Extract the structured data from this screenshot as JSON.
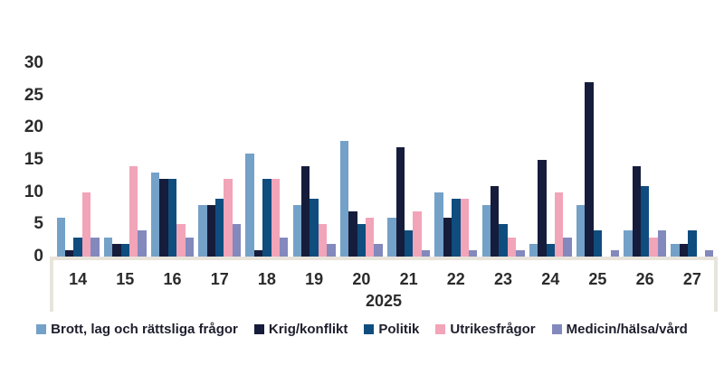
{
  "chart_data": {
    "type": "bar",
    "title": "",
    "xlabel": "2025",
    "ylabel": "",
    "ylim": [
      0,
      30
    ],
    "y_ticks": [
      0,
      5,
      10,
      15,
      20,
      25,
      30
    ],
    "grid": false,
    "legend_position": "bottom",
    "categories": [
      "14",
      "15",
      "16",
      "17",
      "18",
      "19",
      "20",
      "21",
      "22",
      "23",
      "24",
      "25",
      "26",
      "27"
    ],
    "series": [
      {
        "name": "Brott, lag och rättsliga frågor",
        "color": "#74a1c8",
        "values": [
          6,
          3,
          13,
          8,
          16,
          8,
          18,
          6,
          10,
          8,
          2,
          8,
          4,
          2
        ]
      },
      {
        "name": "Krig/konflikt",
        "color": "#161c3b",
        "values": [
          1,
          2,
          12,
          8,
          1,
          14,
          7,
          17,
          6,
          11,
          15,
          27,
          14,
          2
        ]
      },
      {
        "name": "Politik",
        "color": "#0f4d7e",
        "values": [
          3,
          2,
          12,
          9,
          12,
          9,
          5,
          4,
          9,
          5,
          2,
          4,
          11,
          4
        ]
      },
      {
        "name": "Utrikesfrågor",
        "color": "#f2a4b8",
        "values": [
          10,
          14,
          5,
          12,
          12,
          5,
          6,
          7,
          9,
          3,
          10,
          0,
          3,
          0
        ]
      },
      {
        "name": "Medicin/hälsa/vård",
        "color": "#8389bd",
        "values": [
          3,
          4,
          3,
          5,
          3,
          2,
          2,
          1,
          1,
          1,
          3,
          1,
          4,
          1
        ]
      }
    ],
    "colors": {
      "axis_frame": "#e9e4db",
      "tick_text": "#2b2b2b",
      "legend_text": "#1e1e2d",
      "background": "#ffffff"
    }
  }
}
